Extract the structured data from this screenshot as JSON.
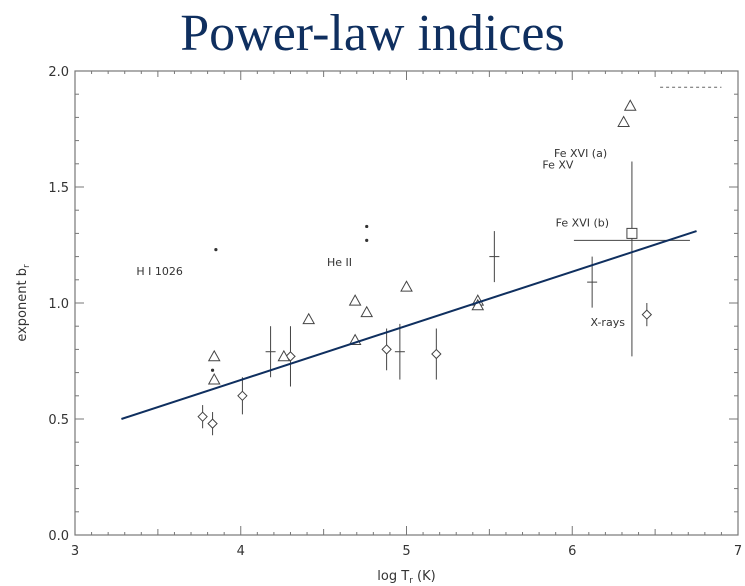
{
  "chart_data": {
    "type": "scatter",
    "title": "Power-law indices",
    "xlabel": "log T",
    "xlabel_sub": "r",
    "xlabel_unit": " (K)",
    "ylabel": "exponent b",
    "ylabel_sub": "r",
    "xlim": [
      3,
      7
    ],
    "ylim": [
      0.0,
      2.0
    ],
    "x_ticks": [
      "3",
      "4",
      "5",
      "6",
      "7"
    ],
    "y_ticks": [
      "0.0",
      "0.5",
      "1.0",
      "1.5",
      "2.0"
    ],
    "grid": false,
    "fit_line": {
      "x": [
        3.28,
        6.75
      ],
      "y": [
        0.5,
        1.31
      ],
      "color": "#0f2f5f"
    },
    "dashed_line": {
      "x": [
        6.53,
        6.9
      ],
      "y": [
        1.93,
        1.93
      ]
    },
    "triangles": [
      {
        "x": 3.84,
        "y": 0.77
      },
      {
        "x": 3.84,
        "y": 0.67
      },
      {
        "x": 4.26,
        "y": 0.77
      },
      {
        "x": 4.41,
        "y": 0.93
      },
      {
        "x": 4.69,
        "y": 1.01
      },
      {
        "x": 4.69,
        "y": 0.84
      },
      {
        "x": 4.76,
        "y": 0.96
      },
      {
        "x": 5.0,
        "y": 1.07
      },
      {
        "x": 5.43,
        "y": 1.01
      },
      {
        "x": 5.43,
        "y": 0.99
      },
      {
        "x": 6.31,
        "y": 1.78
      },
      {
        "x": 6.35,
        "y": 1.85
      }
    ],
    "diamonds": [
      {
        "x": 3.77,
        "y": 0.51,
        "yerr": 0.05
      },
      {
        "x": 3.83,
        "y": 0.48,
        "yerr": 0.05
      },
      {
        "x": 4.01,
        "y": 0.6,
        "yerr": 0.08
      },
      {
        "x": 4.3,
        "y": 0.77,
        "yerr": 0.0
      },
      {
        "x": 4.88,
        "y": 0.8,
        "yerr": 0.09
      },
      {
        "x": 5.18,
        "y": 0.78,
        "yerr": 0.11
      },
      {
        "x": 6.45,
        "y": 0.95,
        "yerr": 0.05
      }
    ],
    "crosses": [
      {
        "x": 4.18,
        "y": 0.79,
        "yerr": 0.11
      },
      {
        "x": 4.3,
        "y": 0.77,
        "yerr": 0.13
      },
      {
        "x": 4.96,
        "y": 0.79,
        "yerr": 0.12
      },
      {
        "x": 5.53,
        "y": 1.2,
        "yerr": 0.11
      },
      {
        "x": 6.12,
        "y": 1.09,
        "yerr": 0.11
      }
    ],
    "squares": [
      {
        "x": 6.36,
        "y": 1.3,
        "yerr_up": 0.31,
        "yerr_down": 0.53,
        "xerr": 0.35
      }
    ],
    "dots": [
      {
        "x": 3.85,
        "y": 1.23
      },
      {
        "x": 3.83,
        "y": 0.71
      },
      {
        "x": 4.76,
        "y": 1.33
      },
      {
        "x": 4.76,
        "y": 1.27
      }
    ],
    "annotations": [
      {
        "text": "H I 1026",
        "x": 3.37,
        "y": 1.12
      },
      {
        "text": "He II",
        "x": 4.52,
        "y": 1.16
      },
      {
        "text": "Fe XVI (a)",
        "x": 5.89,
        "y": 1.63
      },
      {
        "text": "Fe XV",
        "x": 5.82,
        "y": 1.58
      },
      {
        "text": "Fe XVI (b)",
        "x": 5.9,
        "y": 1.33
      },
      {
        "text": "X-rays",
        "x": 6.11,
        "y": 0.9
      }
    ]
  }
}
